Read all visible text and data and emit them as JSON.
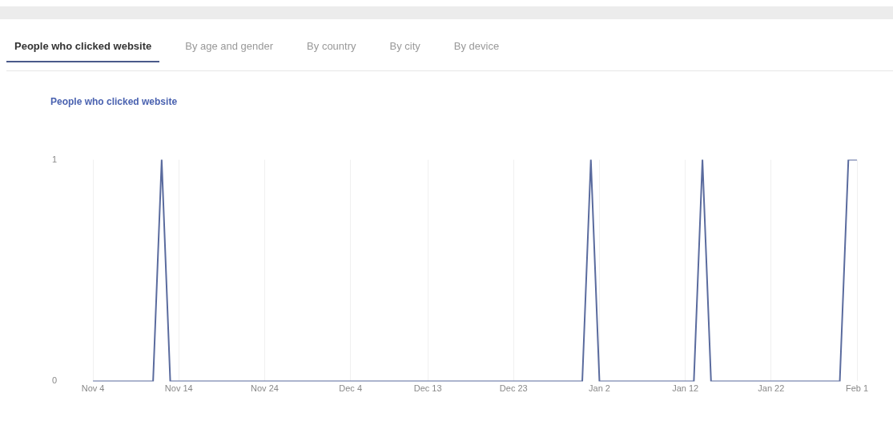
{
  "chart_data": {
    "type": "line",
    "title": "People who clicked website",
    "annotations": [
      "People who clicked website",
      "By age and gender",
      "By country",
      "By city",
      "By device"
    ],
    "categories": [
      "Nov 4",
      null,
      null,
      null,
      null,
      null,
      null,
      null,
      null,
      null,
      "Nov 14",
      null,
      null,
      null,
      null,
      null,
      null,
      null,
      null,
      null,
      "Nov 24",
      null,
      null,
      null,
      null,
      null,
      null,
      null,
      null,
      null,
      "Dec 4",
      null,
      null,
      null,
      null,
      null,
      null,
      null,
      null,
      "Dec 13",
      null,
      null,
      null,
      null,
      null,
      null,
      null,
      null,
      null,
      "Dec 23",
      null,
      null,
      null,
      null,
      null,
      null,
      null,
      null,
      null,
      "Jan 2",
      null,
      null,
      null,
      null,
      null,
      null,
      null,
      null,
      null,
      "Jan 12",
      null,
      null,
      null,
      null,
      null,
      null,
      null,
      null,
      null,
      "Jan 22",
      null,
      null,
      null,
      null,
      null,
      null,
      null,
      null,
      null,
      "Feb 1"
    ],
    "values": [
      0,
      0,
      0,
      0,
      0,
      0,
      0,
      0,
      1,
      0,
      0,
      0,
      0,
      0,
      0,
      0,
      0,
      0,
      0,
      0,
      0,
      0,
      0,
      0,
      0,
      0,
      0,
      0,
      0,
      0,
      0,
      0,
      0,
      0,
      0,
      0,
      0,
      0,
      0,
      0,
      0,
      0,
      0,
      0,
      0,
      0,
      0,
      0,
      0,
      0,
      0,
      0,
      0,
      0,
      0,
      0,
      0,
      0,
      1,
      0,
      0,
      0,
      0,
      0,
      0,
      0,
      0,
      0,
      0,
      0,
      0,
      1,
      0,
      0,
      0,
      0,
      0,
      0,
      0,
      0,
      0,
      0,
      0,
      0,
      0,
      0,
      0,
      0,
      1,
      1
    ],
    "color": "#5a6b9e",
    "ylim": [
      0,
      1
    ],
    "yticks": [
      0,
      1
    ],
    "grid": "x",
    "marker": "none",
    "line_style": "solid"
  }
}
